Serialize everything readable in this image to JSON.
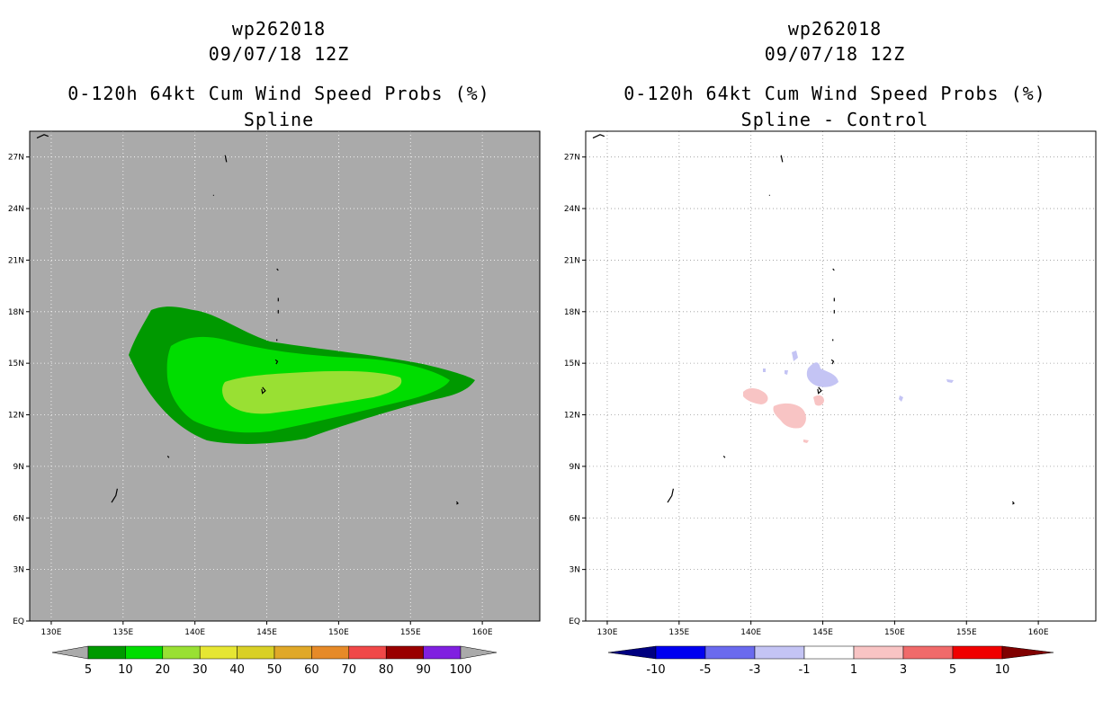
{
  "left_panel": {
    "storm": "wp262018",
    "datetime": "09/07/18 12Z",
    "product": "0-120h 64kt Cum Wind Speed Probs (%)",
    "subtitle": "Spline",
    "background_color": "#aaaaaa"
  },
  "right_panel": {
    "storm": "wp262018",
    "datetime": "09/07/18 12Z",
    "product": "0-120h 64kt Cum Wind Speed Probs (%)",
    "subtitle": "Spline - Control",
    "background_color": "#ffffff"
  },
  "map": {
    "lat_ticks": [
      "EQ",
      "3N",
      "6N",
      "9N",
      "12N",
      "15N",
      "18N",
      "21N",
      "24N",
      "27N"
    ],
    "lon_ticks": [
      "130E",
      "135E",
      "140E",
      "145E",
      "150E",
      "155E",
      "160E"
    ],
    "lat_range": [
      0,
      28.5
    ],
    "lon_range": [
      128.5,
      164
    ]
  },
  "left_colorbar": {
    "labels": [
      "5",
      "10",
      "20",
      "30",
      "40",
      "50",
      "60",
      "70",
      "80",
      "90",
      "100"
    ],
    "colors": [
      "#009900",
      "#00dd00",
      "#99e033",
      "#e6e633",
      "#d9d026",
      "#e0a828",
      "#e68a28",
      "#f04848",
      "#990000",
      "#8020e0"
    ]
  },
  "right_colorbar": {
    "labels": [
      "-10",
      "-5",
      "-3",
      "-1",
      "1",
      "3",
      "5",
      "10"
    ],
    "colors": [
      "#000080",
      "#0000f0",
      "#6a6aee",
      "#c4c4f4",
      "#ffffff",
      "#f8c4c4",
      "#f06a6a",
      "#f00000",
      "#800000"
    ]
  }
}
